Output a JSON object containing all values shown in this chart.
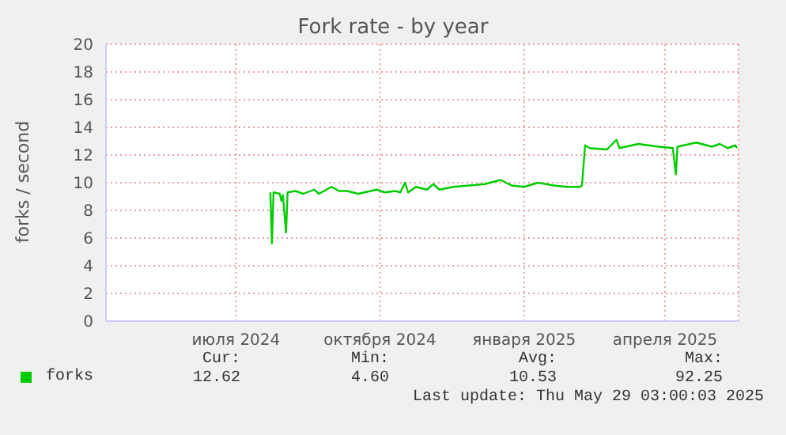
{
  "chart_data": {
    "type": "line",
    "title": "Fork rate - by year",
    "ylabel": "forks / second",
    "xlim": [
      "2024-04-09",
      "2025-05-18"
    ],
    "xticks": [
      {
        "value": "2024-07-01",
        "label": "июля 2024"
      },
      {
        "value": "2024-10-01",
        "label": "октября 2024"
      },
      {
        "value": "2025-01-01",
        "label": "января 2025"
      },
      {
        "value": "2025-04-01",
        "label": "апреля 2025"
      }
    ],
    "ylim": [
      0,
      20
    ],
    "yticks": [
      0,
      2,
      4,
      6,
      8,
      10,
      12,
      14,
      16,
      18,
      20
    ],
    "grid": true,
    "legend": "bottom left",
    "marker": "none",
    "series": [
      {
        "name": "forks",
        "color": "#00cc00",
        "x": [
          "2024-07-23",
          "2024-07-24",
          "2024-07-25",
          "2024-07-29",
          "2024-07-30",
          "2024-07-31",
          "2024-08-02",
          "2024-08-03",
          "2024-08-08",
          "2024-08-13",
          "2024-08-20",
          "2024-08-23",
          "2024-08-31",
          "2024-09-05",
          "2024-09-10",
          "2024-09-17",
          "2024-09-29",
          "2024-10-04",
          "2024-10-11",
          "2024-10-14",
          "2024-10-17",
          "2024-10-19",
          "2024-10-24",
          "2024-10-31",
          "2024-11-04",
          "2024-11-08",
          "2024-11-17",
          "2024-11-27",
          "2024-12-07",
          "2024-12-17",
          "2024-12-24",
          "2025-01-01",
          "2025-01-10",
          "2025-01-20",
          "2025-01-28",
          "2025-02-06",
          "2025-02-07",
          "2025-02-09",
          "2025-02-12",
          "2025-02-23",
          "2025-03-01",
          "2025-03-03",
          "2025-03-15",
          "2025-03-28",
          "2025-04-06",
          "2025-04-08",
          "2025-04-09",
          "2025-04-21",
          "2025-05-01",
          "2025-05-06",
          "2025-05-11",
          "2025-05-16",
          "2025-05-17"
        ],
        "values": [
          9.3,
          5.6,
          9.3,
          9.2,
          8.7,
          9.1,
          6.4,
          9.3,
          9.4,
          9.2,
          9.5,
          9.2,
          9.7,
          9.4,
          9.4,
          9.2,
          9.5,
          9.3,
          9.4,
          9.3,
          10.0,
          9.3,
          9.7,
          9.5,
          9.9,
          9.5,
          9.7,
          9.8,
          9.9,
          10.2,
          9.8,
          9.7,
          10.0,
          9.8,
          9.7,
          9.7,
          9.8,
          12.7,
          12.5,
          12.4,
          13.1,
          12.5,
          12.8,
          12.6,
          12.5,
          10.6,
          12.6,
          12.9,
          12.6,
          12.8,
          12.5,
          12.7,
          12.5
        ]
      }
    ],
    "annotations": [
      "Cur:",
      "Min:",
      "Avg:",
      "Max:",
      "12.62",
      "4.60",
      "10.53",
      "92.25",
      "Last update: Thu May 29 03:00:03 2025"
    ]
  }
}
